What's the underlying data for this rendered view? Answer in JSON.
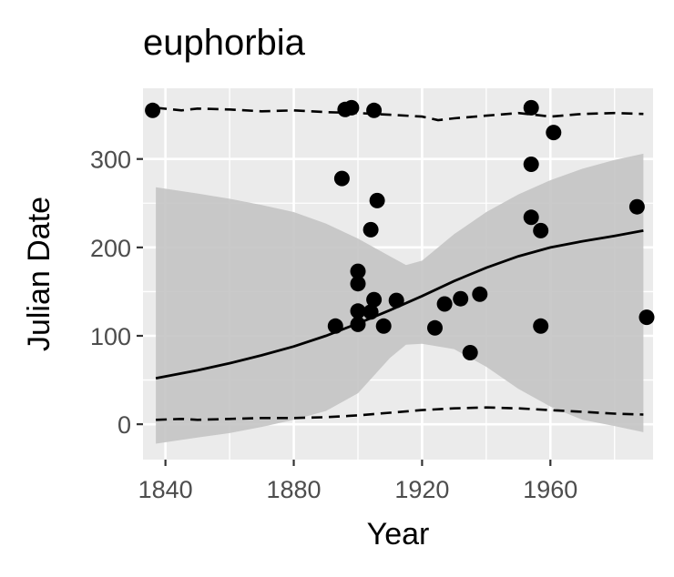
{
  "chart_data": {
    "type": "scatter",
    "title": "euphorbia",
    "xlabel": "Year",
    "ylabel": "Julian Date",
    "xlim": [
      1833,
      1992
    ],
    "ylim": [
      -40,
      380
    ],
    "x_ticks": [
      1840,
      1880,
      1920,
      1960
    ],
    "y_ticks": [
      0,
      100,
      200,
      300
    ],
    "x_tick_labels": [
      "1840",
      "1880",
      "1920",
      "1960"
    ],
    "y_tick_labels": [
      "0",
      "100",
      "200",
      "300"
    ],
    "grid": true,
    "panel_background": "#ebebeb",
    "point_color": "#000000",
    "ribbon_color": "#c4c4c4",
    "points": [
      {
        "x": 1836,
        "y": 355
      },
      {
        "x": 1895,
        "y": 278
      },
      {
        "x": 1896,
        "y": 356
      },
      {
        "x": 1898,
        "y": 358
      },
      {
        "x": 1904,
        "y": 220
      },
      {
        "x": 1906,
        "y": 253
      },
      {
        "x": 1905,
        "y": 355
      },
      {
        "x": 1893,
        "y": 111
      },
      {
        "x": 1900,
        "y": 173
      },
      {
        "x": 1900,
        "y": 159
      },
      {
        "x": 1900,
        "y": 128
      },
      {
        "x": 1900,
        "y": 113
      },
      {
        "x": 1904,
        "y": 127
      },
      {
        "x": 1905,
        "y": 141
      },
      {
        "x": 1908,
        "y": 111
      },
      {
        "x": 1912,
        "y": 140
      },
      {
        "x": 1924,
        "y": 109
      },
      {
        "x": 1927,
        "y": 136
      },
      {
        "x": 1932,
        "y": 142
      },
      {
        "x": 1935,
        "y": 81
      },
      {
        "x": 1938,
        "y": 147
      },
      {
        "x": 1954,
        "y": 358
      },
      {
        "x": 1954,
        "y": 294
      },
      {
        "x": 1954,
        "y": 234
      },
      {
        "x": 1957,
        "y": 219
      },
      {
        "x": 1957,
        "y": 111
      },
      {
        "x": 1961,
        "y": 330
      },
      {
        "x": 1987,
        "y": 246
      },
      {
        "x": 1990,
        "y": 121
      }
    ],
    "fit_line": {
      "x": [
        1837,
        1850,
        1860,
        1870,
        1880,
        1890,
        1900,
        1910,
        1920,
        1930,
        1940,
        1950,
        1960,
        1970,
        1980,
        1989
      ],
      "y": [
        52,
        61,
        69,
        78,
        88,
        100,
        114,
        129,
        145,
        162,
        177,
        190,
        200,
        207,
        213,
        219
      ]
    },
    "ribbon": {
      "x": [
        1837,
        1850,
        1860,
        1870,
        1880,
        1890,
        1900,
        1910,
        1915,
        1920,
        1930,
        1940,
        1950,
        1960,
        1970,
        1980,
        1989
      ],
      "upper": [
        268,
        261,
        255,
        248,
        240,
        227,
        210,
        190,
        180,
        185,
        215,
        240,
        260,
        276,
        289,
        299,
        306
      ],
      "lower": [
        -22,
        -15,
        -10,
        -3,
        5,
        15,
        35,
        75,
        90,
        91,
        85,
        65,
        40,
        20,
        5,
        -2,
        -9
      ]
    },
    "quantile_upper": {
      "x": [
        1837,
        1845,
        1850,
        1860,
        1870,
        1880,
        1890,
        1900,
        1910,
        1920,
        1925,
        1930,
        1940,
        1950,
        1955,
        1960,
        1970,
        1980,
        1989
      ],
      "y": [
        358,
        355,
        357,
        356,
        354,
        355,
        353,
        352,
        350,
        348,
        344,
        346,
        349,
        352,
        350,
        348,
        351,
        352,
        351
      ]
    },
    "quantile_lower": {
      "x": [
        1837,
        1845,
        1850,
        1860,
        1870,
        1880,
        1890,
        1900,
        1910,
        1920,
        1930,
        1940,
        1950,
        1960,
        1970,
        1980,
        1989
      ],
      "y": [
        5,
        6,
        5,
        6,
        7,
        7,
        8,
        10,
        13,
        16,
        18,
        19,
        18,
        16,
        14,
        12,
        11
      ]
    }
  }
}
